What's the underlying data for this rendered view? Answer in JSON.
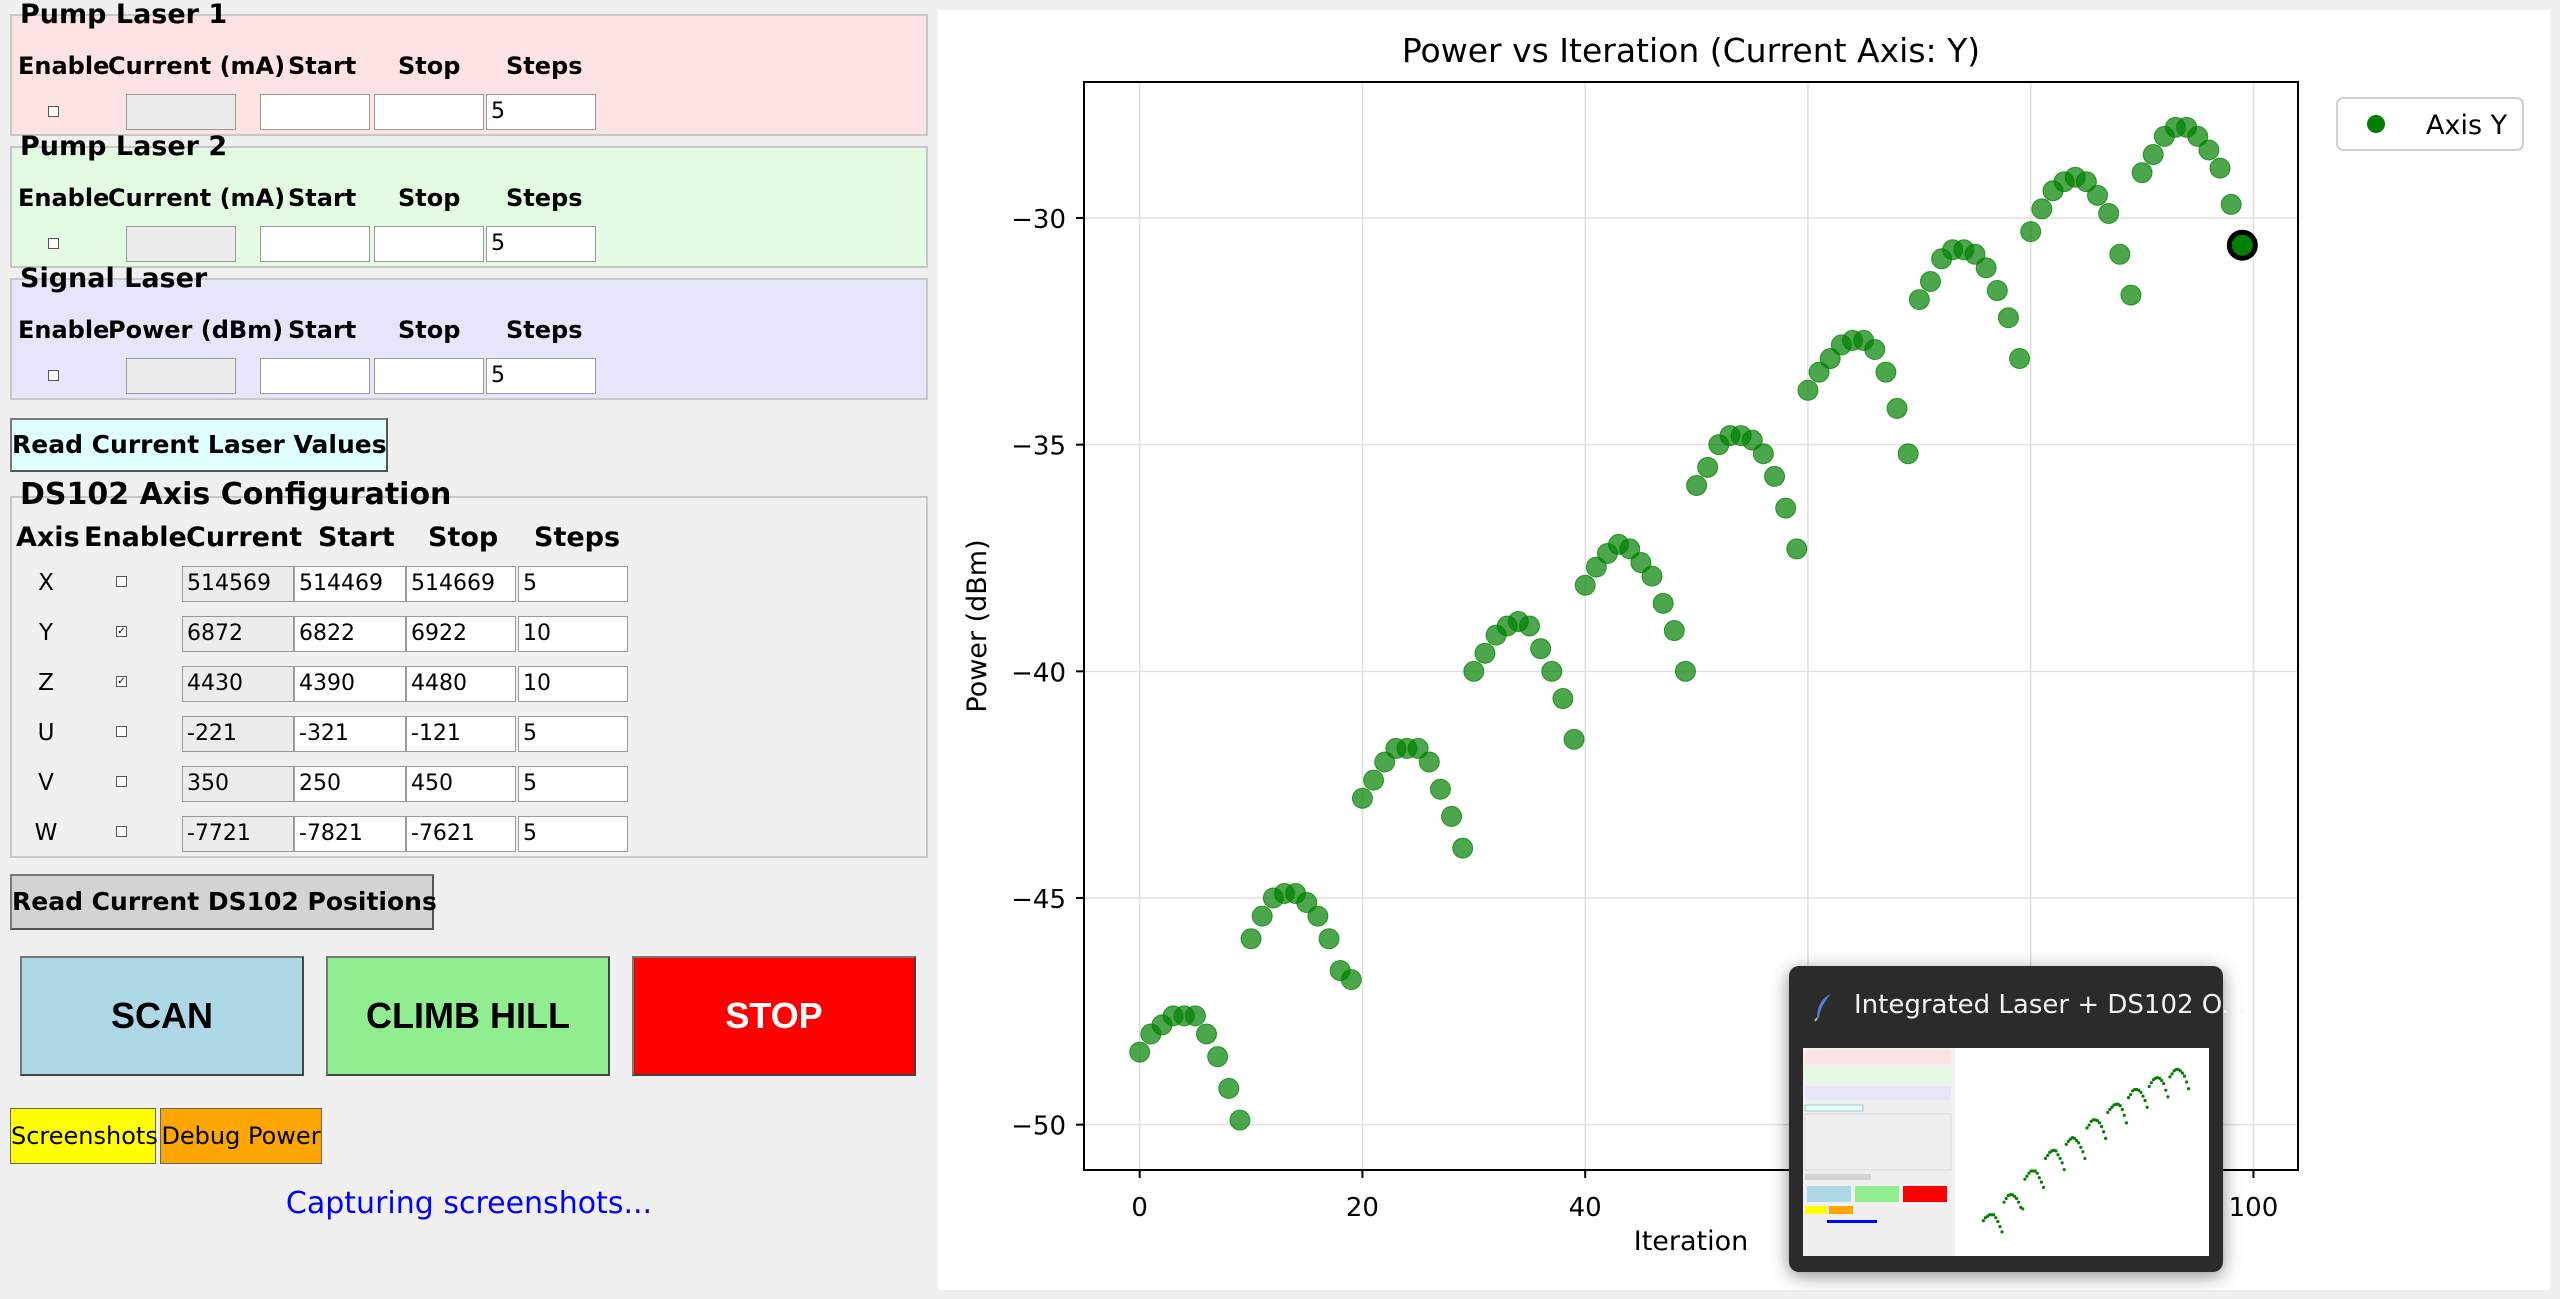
{
  "pump1": {
    "title": "Pump Laser 1",
    "bg": "#fde3e3",
    "headers": [
      "Enable",
      "Current (mA)",
      "Start",
      "Stop",
      "Steps"
    ],
    "current": "",
    "start": "",
    "stop": "",
    "steps": "5",
    "enabled": false
  },
  "pump2": {
    "title": "Pump Laser 2",
    "bg": "#e3fae3",
    "headers": [
      "Enable",
      "Current (mA)",
      "Start",
      "Stop",
      "Steps"
    ],
    "current": "",
    "start": "",
    "stop": "",
    "steps": "5",
    "enabled": false
  },
  "signal": {
    "title": "Signal Laser",
    "bg": "#e6e6fb",
    "headers": [
      "Enable",
      "Power (dBm)",
      "Start",
      "Stop",
      "Steps"
    ],
    "current": "",
    "start": "",
    "stop": "",
    "steps": "5",
    "enabled": false
  },
  "read_laser_button": "Read Current Laser Values",
  "ds102": {
    "title": "DS102 Axis Configuration",
    "headers": [
      "Axis",
      "Enable",
      "Current",
      "Start",
      "Stop",
      "Steps"
    ],
    "rows": [
      {
        "axis": "X",
        "enabled": false,
        "current": "514569",
        "start": "514469",
        "stop": "514669",
        "steps": "5"
      },
      {
        "axis": "Y",
        "enabled": true,
        "current": "6872",
        "start": "6822",
        "stop": "6922",
        "steps": "10"
      },
      {
        "axis": "Z",
        "enabled": true,
        "current": "4430",
        "start": "4390",
        "stop": "4480",
        "steps": "10"
      },
      {
        "axis": "U",
        "enabled": false,
        "current": "-221",
        "start": "-321",
        "stop": "-121",
        "steps": "5"
      },
      {
        "axis": "V",
        "enabled": false,
        "current": "350",
        "start": "250",
        "stop": "450",
        "steps": "5"
      },
      {
        "axis": "W",
        "enabled": false,
        "current": "-7721",
        "start": "-7821",
        "stop": "-7621",
        "steps": "5"
      }
    ]
  },
  "read_ds102_button": "Read Current DS102 Positions",
  "buttons": {
    "scan": "SCAN",
    "climb": "CLIMB HILL",
    "stop": "STOP",
    "screenshots": "Screenshots",
    "debug": "Debug Power"
  },
  "colors": {
    "read_laser_bg": "#e0ffff",
    "read_ds102_bg": "#d3d3d3",
    "scan_bg": "#add8e6",
    "climb_bg": "#90ee90",
    "stop_bg": "#ff0000",
    "stop_fg": "#ffffff",
    "screenshots_bg": "#ffff00",
    "debug_bg": "#ffa500",
    "status_fg": "#0000ff",
    "series": "#008000"
  },
  "status": "Capturing screenshots...",
  "chart_data": {
    "type": "scatter",
    "title": "Power vs Iteration (Current Axis: Y)",
    "xlabel": "Iteration",
    "ylabel": "Power (dBm)",
    "xlim": [
      -5,
      104
    ],
    "ylim": [
      -51,
      -27
    ],
    "xticks": [
      0,
      20,
      40,
      60,
      80,
      100
    ],
    "yticks": [
      -30,
      -35,
      -40,
      -45,
      -50
    ],
    "ytick_labels": [
      "−30",
      "−35",
      "−40",
      "−45",
      "−50"
    ],
    "grid": true,
    "legend": "top-right",
    "series": [
      {
        "name": "Axis Y",
        "x": [
          0,
          1,
          2,
          3,
          4,
          5,
          6,
          7,
          8,
          9,
          10,
          11,
          12,
          13,
          14,
          15,
          16,
          17,
          18,
          19,
          20,
          21,
          22,
          23,
          24,
          25,
          26,
          27,
          28,
          29,
          30,
          31,
          32,
          33,
          34,
          35,
          36,
          37,
          38,
          39,
          40,
          41,
          42,
          43,
          44,
          45,
          46,
          47,
          48,
          49,
          50,
          51,
          52,
          53,
          54,
          55,
          56,
          57,
          58,
          59,
          60,
          61,
          62,
          63,
          64,
          65,
          66,
          67,
          68,
          69,
          70,
          71,
          72,
          73,
          74,
          75,
          76,
          77,
          78,
          79,
          80,
          81,
          82,
          83,
          84,
          85,
          86,
          87,
          88,
          89,
          90,
          91,
          92,
          93,
          94,
          95,
          96,
          97,
          98,
          99
        ],
        "y": [
          -48.4,
          -48.0,
          -47.8,
          -47.6,
          -47.6,
          -47.6,
          -48.0,
          -48.5,
          -49.2,
          -49.9,
          -45.9,
          -45.4,
          -45.0,
          -44.9,
          -44.9,
          -45.1,
          -45.4,
          -45.9,
          -46.6,
          -46.8,
          -42.8,
          -42.4,
          -42.0,
          -41.7,
          -41.7,
          -41.7,
          -42.0,
          -42.6,
          -43.2,
          -43.9,
          -40.0,
          -39.6,
          -39.2,
          -39.0,
          -38.9,
          -39.0,
          -39.5,
          -40.0,
          -40.6,
          -41.5,
          -38.1,
          -37.7,
          -37.4,
          -37.2,
          -37.3,
          -37.6,
          -37.9,
          -38.5,
          -39.1,
          -40.0,
          -35.9,
          -35.5,
          -35.0,
          -34.8,
          -34.8,
          -34.9,
          -35.2,
          -35.7,
          -36.4,
          -37.3,
          -33.8,
          -33.4,
          -33.1,
          -32.8,
          -32.7,
          -32.7,
          -32.9,
          -33.4,
          -34.2,
          -35.2,
          -31.8,
          -31.4,
          -30.9,
          -30.7,
          -30.7,
          -30.8,
          -31.1,
          -31.6,
          -32.2,
          -33.1,
          -30.3,
          -29.8,
          -29.4,
          -29.2,
          -29.1,
          -29.2,
          -29.5,
          -29.9,
          -30.8,
          -31.7,
          -29.0,
          -28.6,
          -28.2,
          -28.0,
          -28.0,
          -28.2,
          -28.5,
          -28.9,
          -29.7,
          -30.6
        ]
      }
    ],
    "current_marker": {
      "x": 99,
      "y": -30.6
    }
  },
  "preview": {
    "title": "Integrated Laser + DS102 O..."
  }
}
